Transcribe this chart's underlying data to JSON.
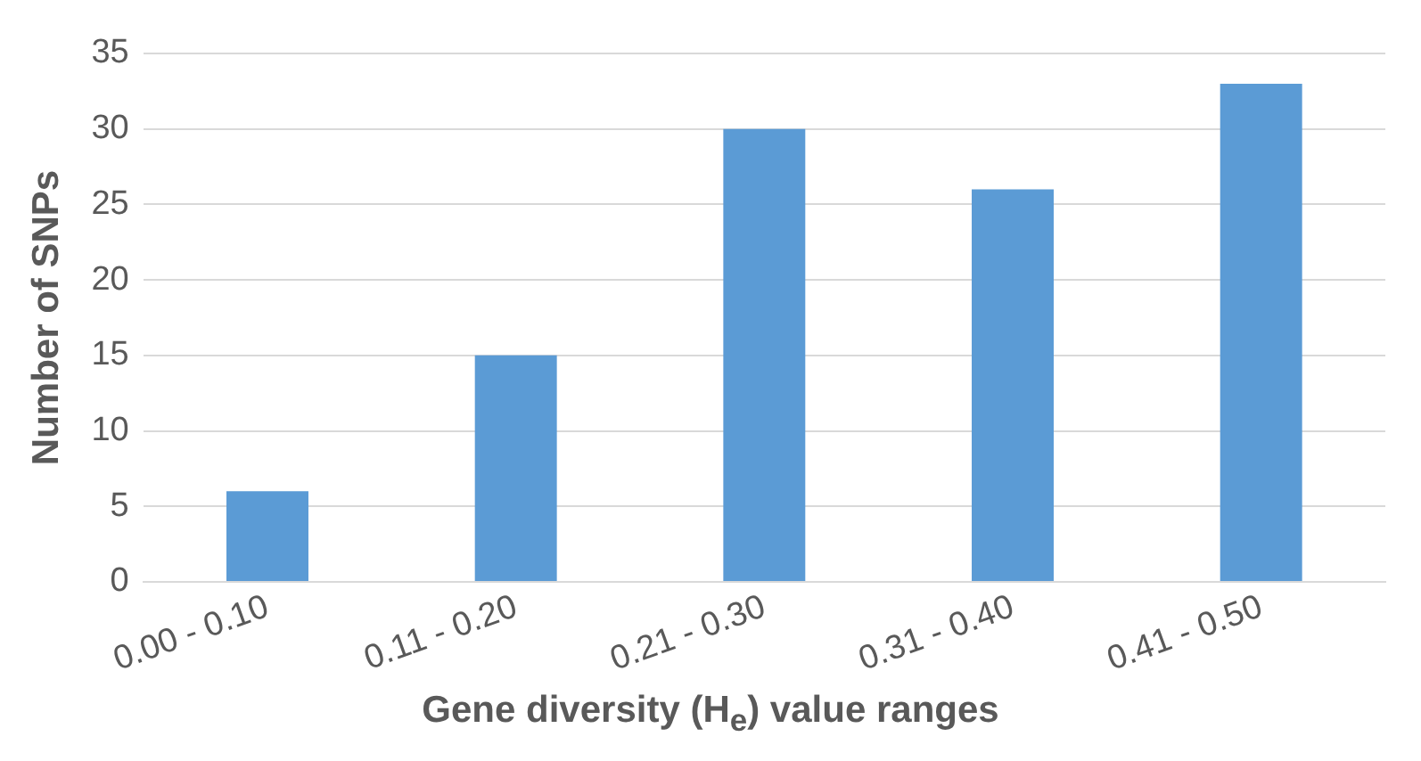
{
  "chart_data": {
    "type": "bar",
    "xlabel": "Gene diversity (H$_{e}$) value ranges",
    "ylabel": "Number of SNPs",
    "categories": [
      "0.00 - 0.10",
      "0.11 - 0.20",
      "0.21 - 0.30",
      "0.31 - 0.40",
      "0.41 - 0.50"
    ],
    "values": [
      6,
      15,
      30,
      26,
      33
    ],
    "color": "#5b9bd5",
    "ylim": [
      0,
      35
    ],
    "yticks": [
      0,
      5,
      10,
      15,
      20,
      25,
      30,
      35
    ],
    "grid": "y",
    "legend": false
  }
}
